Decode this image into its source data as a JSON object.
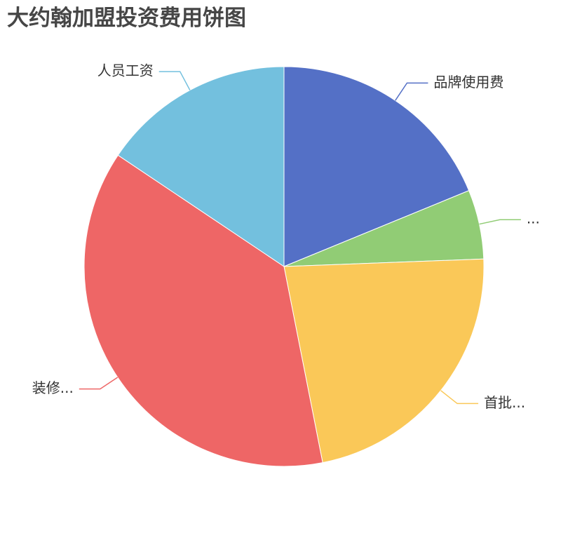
{
  "chart_data": {
    "type": "pie",
    "title": "大约翰加盟投资费用饼图",
    "slices": [
      {
        "label": "品牌使用费",
        "value": 18.8,
        "color": "#5470c6"
      },
      {
        "label": "...",
        "value": 5.6,
        "color": "#91cc75"
      },
      {
        "label": "首批...",
        "value": 22.5,
        "color": "#fac858"
      },
      {
        "label": "装修...",
        "value": 37.5,
        "color": "#ee6666"
      },
      {
        "label": "人员工资",
        "value": 15.6,
        "color": "#73c0de"
      }
    ],
    "legend": "none"
  }
}
